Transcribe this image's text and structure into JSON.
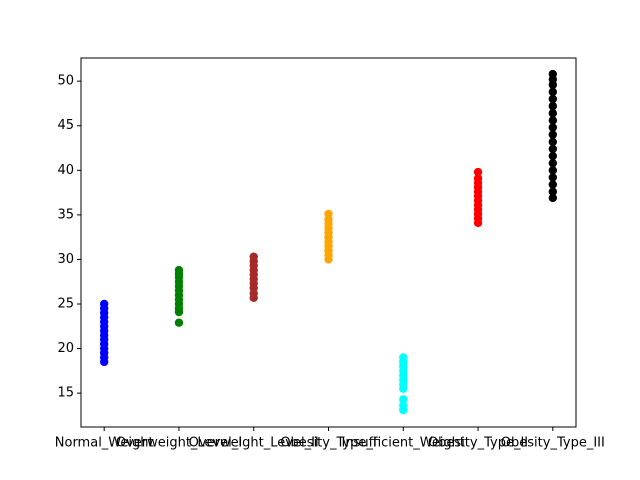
{
  "chart_data": {
    "type": "strip",
    "categories": [
      "Normal_Weight",
      "Overweight_Level_I",
      "Overweight_Level_II",
      "Obesity_Type_I",
      "Insufficient_Weight",
      "Obesity_Type_II",
      "Obesity_Type_III"
    ],
    "colors": [
      "blue",
      "green",
      "brown",
      "orange",
      "cyan",
      "red",
      "black"
    ],
    "values": [
      [
        18.5,
        19,
        19.5,
        20,
        20.5,
        21,
        21.5,
        22,
        22.5,
        23,
        23.5,
        24,
        24.5,
        25
      ],
      [
        22.9,
        24.1,
        24.5,
        25,
        25.5,
        26,
        26.5,
        27,
        27.5,
        28,
        28.4,
        28.8
      ],
      [
        25.7,
        26.2,
        26.8,
        27.3,
        27.8,
        28.3,
        28.8,
        29.3,
        29.8,
        30.3
      ],
      [
        30,
        30.5,
        31,
        31.5,
        32,
        32.5,
        33,
        33.5,
        34,
        34.5,
        35.1
      ],
      [
        13.1,
        13.6,
        14.3,
        15.5,
        16,
        16.5,
        17,
        17.5,
        18,
        18.5,
        19
      ],
      [
        34.1,
        34.6,
        35.1,
        35.6,
        36.1,
        36.6,
        37.1,
        37.6,
        38.1,
        38.6,
        39.1,
        39.8
      ],
      [
        36.9,
        37.6,
        38.4,
        39.2,
        40,
        40.8,
        41.6,
        42.4,
        43.2,
        44,
        44.8,
        45.6,
        46.4,
        47.2,
        48,
        48.8,
        49.6,
        50.2,
        50.8
      ]
    ],
    "xlim": [
      -0.31,
      6.31
    ],
    "ylim": [
      11.2,
      52.6
    ],
    "yticks": [
      15,
      20,
      25,
      30,
      35,
      40,
      45,
      50
    ]
  }
}
